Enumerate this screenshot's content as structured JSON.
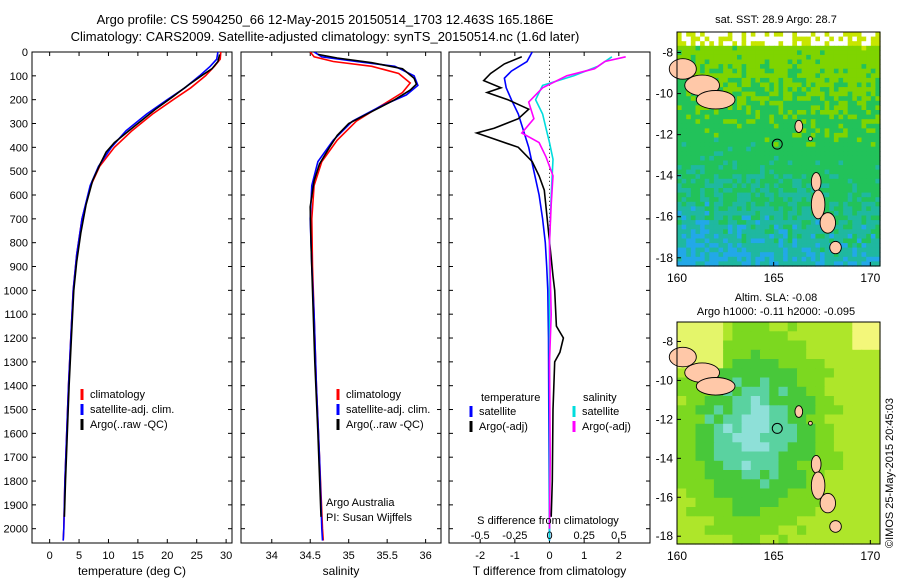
{
  "title": {
    "line1": "Argo profile: CS 5904250_66 12-May-2015 20150514_1703 12.463S 165.186E",
    "line2": "Climatology: CARS2009. Satellite-adjusted climatology: synTS_20150514.nc (1.6d later)"
  },
  "colors": {
    "climatology": "#ff0000",
    "satellite": "#0000ff",
    "argo": "#000000",
    "sat_salinity": "#00dddd",
    "argo_salinity": "#ff00ff"
  },
  "credit": "©IMOS 25-May-2015 20:45:03",
  "chart_data": [
    {
      "type": "line",
      "panel": "temperature",
      "xlabel": "temperature (deg C)",
      "x_ticks": [
        "0",
        "5",
        "10",
        "15",
        "20",
        "25",
        "30"
      ],
      "xlim": [
        -3,
        31
      ],
      "ylim": [
        0,
        2060
      ],
      "y_inverted": true,
      "y_ticks": [
        "0",
        "100",
        "200",
        "300",
        "400",
        "500",
        "600",
        "700",
        "800",
        "900",
        "1000",
        "1100",
        "1200",
        "1300",
        "1400",
        "1500",
        "1600",
        "1700",
        "1800",
        "1900",
        "2000"
      ],
      "legend": [
        "climatology",
        "satellite-adj. clim.",
        "Argo(..raw -QC)"
      ],
      "series": [
        {
          "name": "climatology",
          "color": "#ff0000",
          "points": [
            [
              29.1,
              0
            ],
            [
              29,
              30
            ],
            [
              28,
              60
            ],
            [
              26.5,
              100
            ],
            [
              24,
              150
            ],
            [
              21,
              200
            ],
            [
              17.5,
              260
            ],
            [
              14,
              330
            ],
            [
              11,
              400
            ],
            [
              8.5,
              480
            ],
            [
              7,
              560
            ],
            [
              5.5,
              700
            ],
            [
              4.6,
              850
            ],
            [
              4,
              1000
            ],
            [
              3.6,
              1200
            ],
            [
              3.2,
              1400
            ],
            [
              2.9,
              1600
            ],
            [
              2.6,
              1800
            ],
            [
              2.4,
              2000
            ],
            [
              2.3,
              2050
            ]
          ]
        },
        {
          "name": "satellite-adj. clim.",
          "color": "#0000ff",
          "points": [
            [
              28.6,
              0
            ],
            [
              28.4,
              30
            ],
            [
              27.3,
              60
            ],
            [
              25.5,
              100
            ],
            [
              23,
              150
            ],
            [
              20,
              200
            ],
            [
              16.5,
              260
            ],
            [
              13,
              330
            ],
            [
              10.5,
              400
            ],
            [
              8.3,
              480
            ],
            [
              6.9,
              560
            ],
            [
              5.5,
              700
            ],
            [
              4.6,
              850
            ],
            [
              4,
              1000
            ],
            [
              3.6,
              1200
            ],
            [
              3.2,
              1400
            ],
            [
              2.9,
              1600
            ],
            [
              2.6,
              1800
            ],
            [
              2.4,
              2000
            ],
            [
              2.3,
              2050
            ]
          ]
        },
        {
          "name": "Argo(..raw -QC)",
          "color": "#000000",
          "points": [
            [
              28.9,
              10
            ],
            [
              28.6,
              40
            ],
            [
              27.6,
              70
            ],
            [
              25.8,
              100
            ],
            [
              23.5,
              140
            ],
            [
              20.8,
              190
            ],
            [
              18,
              240
            ],
            [
              14.5,
              310
            ],
            [
              11,
              380
            ],
            [
              9.6,
              420
            ],
            [
              8.6,
              470
            ],
            [
              7.3,
              540
            ],
            [
              6.2,
              640
            ],
            [
              5.3,
              760
            ],
            [
              4.6,
              880
            ],
            [
              4.1,
              1000
            ],
            [
              3.7,
              1200
            ],
            [
              3.3,
              1400
            ],
            [
              3,
              1600
            ],
            [
              2.7,
              1800
            ],
            [
              2.5,
              1950
            ]
          ]
        }
      ]
    },
    {
      "type": "line",
      "panel": "salinity",
      "xlabel": "salinity",
      "x_ticks": [
        "34",
        "34.5",
        "35",
        "35.5",
        "36"
      ],
      "xlim": [
        33.6,
        36.2
      ],
      "ylim": [
        0,
        2060
      ],
      "y_inverted": true,
      "legend": [
        "climatology",
        "satellite-adj. clim.",
        "Argo(..raw -QC)"
      ],
      "annotations": [
        "Argo Australia",
        "PI: Susan Wijffels"
      ],
      "series": [
        {
          "name": "climatology",
          "color": "#ff0000",
          "points": [
            [
              34.5,
              0
            ],
            [
              34.55,
              20
            ],
            [
              34.8,
              40
            ],
            [
              35.3,
              60
            ],
            [
              35.65,
              90
            ],
            [
              35.8,
              130
            ],
            [
              35.7,
              170
            ],
            [
              35.45,
              220
            ],
            [
              35.1,
              290
            ],
            [
              34.85,
              370
            ],
            [
              34.65,
              460
            ],
            [
              34.55,
              560
            ],
            [
              34.52,
              700
            ],
            [
              34.53,
              900
            ],
            [
              34.55,
              1100
            ],
            [
              34.58,
              1400
            ],
            [
              34.62,
              1700
            ],
            [
              34.66,
              2000
            ],
            [
              34.67,
              2050
            ]
          ]
        },
        {
          "name": "satellite-adj. clim.",
          "color": "#0000ff",
          "points": [
            [
              34.55,
              0
            ],
            [
              34.65,
              20
            ],
            [
              35.1,
              40
            ],
            [
              35.6,
              60
            ],
            [
              35.85,
              100
            ],
            [
              35.9,
              140
            ],
            [
              35.75,
              180
            ],
            [
              35.4,
              230
            ],
            [
              35.05,
              290
            ],
            [
              34.8,
              370
            ],
            [
              34.6,
              460
            ],
            [
              34.52,
              560
            ],
            [
              34.5,
              700
            ],
            [
              34.52,
              900
            ],
            [
              34.55,
              1100
            ],
            [
              34.58,
              1400
            ],
            [
              34.62,
              1700
            ],
            [
              34.65,
              2000
            ],
            [
              34.66,
              2050
            ]
          ]
        },
        {
          "name": "Argo(..raw -QC)",
          "color": "#000000",
          "points": [
            [
              34.6,
              10
            ],
            [
              34.85,
              25
            ],
            [
              35.3,
              45
            ],
            [
              35.7,
              70
            ],
            [
              35.85,
              110
            ],
            [
              35.88,
              135
            ],
            [
              35.8,
              160
            ],
            [
              35.6,
              200
            ],
            [
              35.3,
              250
            ],
            [
              35.0,
              300
            ],
            [
              34.85,
              350
            ],
            [
              34.75,
              400
            ],
            [
              34.62,
              470
            ],
            [
              34.55,
              540
            ],
            [
              34.5,
              650
            ],
            [
              34.51,
              800
            ],
            [
              34.53,
              1000
            ],
            [
              34.56,
              1300
            ],
            [
              34.6,
              1600
            ],
            [
              34.64,
              1950
            ]
          ]
        }
      ]
    },
    {
      "type": "line",
      "panel": "difference",
      "xlabel": "T difference from climatology",
      "xlabel2": "S difference from climatology",
      "x_ticks": [
        "-2",
        "-1",
        "0",
        "1",
        "2"
      ],
      "x_ticks_top": [
        "-0.5",
        "-0.25",
        "0",
        "0.25",
        "0.5"
      ],
      "xlim": [
        -2.9,
        2.9
      ],
      "ylim": [
        0,
        2060
      ],
      "y_inverted": true,
      "legend_headers": [
        "temperature",
        "salinity"
      ],
      "legend_t": [
        "satellite",
        "Argo(-adj)"
      ],
      "legend_s": [
        "satellite",
        "Argo(-adj)"
      ],
      "series": [
        {
          "name": "satellite",
          "group": "temperature",
          "color": "#0000ff",
          "points": [
            [
              -0.5,
              0
            ],
            [
              -0.65,
              40
            ],
            [
              -1.1,
              80
            ],
            [
              -1.3,
              110
            ],
            [
              -1.25,
              150
            ],
            [
              -1.1,
              200
            ],
            [
              -0.9,
              260
            ],
            [
              -0.75,
              330
            ],
            [
              -0.6,
              400
            ],
            [
              -0.45,
              500
            ],
            [
              -0.3,
              600
            ],
            [
              -0.2,
              700
            ],
            [
              -0.12,
              800
            ],
            [
              -0.08,
              900
            ],
            [
              -0.05,
              1000
            ],
            [
              -0.03,
              1200
            ],
            [
              -0.02,
              1500
            ],
            [
              -0.01,
              1800
            ],
            [
              0,
              2050
            ]
          ]
        },
        {
          "name": "Argo(-adj)",
          "group": "temperature",
          "color": "#000000",
          "points": [
            [
              -0.8,
              20
            ],
            [
              -1.3,
              50
            ],
            [
              -1.7,
              90
            ],
            [
              -1.9,
              120
            ],
            [
              -1.4,
              150
            ],
            [
              -1.8,
              170
            ],
            [
              -1.2,
              200
            ],
            [
              -0.6,
              240
            ],
            [
              -0.9,
              280
            ],
            [
              -1.6,
              320
            ],
            [
              -2.1,
              340
            ],
            [
              -1.7,
              360
            ],
            [
              -0.9,
              400
            ],
            [
              -0.5,
              460
            ],
            [
              -0.3,
              520
            ],
            [
              -0.15,
              580
            ],
            [
              0.1,
              940
            ],
            [
              0.15,
              1000
            ],
            [
              0.2,
              1150
            ],
            [
              0.4,
              1200
            ],
            [
              0.3,
              1260
            ],
            [
              0.15,
              1300
            ],
            [
              0.1,
              1500
            ],
            [
              0.08,
              1800
            ],
            [
              0.05,
              1950
            ]
          ]
        },
        {
          "name": "satellite",
          "group": "salinity",
          "color": "#00dddd",
          "points": [
            [
              1.8,
              20
            ],
            [
              1.4,
              60
            ],
            [
              0.7,
              100
            ],
            [
              -0.2,
              140
            ],
            [
              -0.4,
              200
            ],
            [
              -0.2,
              260
            ],
            [
              -0.1,
              320
            ],
            [
              0,
              380
            ],
            [
              0.1,
              450
            ],
            [
              0.05,
              600
            ],
            [
              0,
              800
            ],
            [
              0,
              1200
            ],
            [
              0,
              1600
            ],
            [
              0,
              2050
            ]
          ]
        },
        {
          "name": "Argo(-adj)",
          "group": "salinity",
          "color": "#ff00ff",
          "points": [
            [
              2.2,
              20
            ],
            [
              1.6,
              40
            ],
            [
              1.3,
              70
            ],
            [
              0.5,
              100
            ],
            [
              -0.2,
              150
            ],
            [
              -0.6,
              210
            ],
            [
              -0.45,
              280
            ],
            [
              -0.8,
              340
            ],
            [
              -0.3,
              380
            ],
            [
              -0.1,
              440
            ],
            [
              0.1,
              520
            ],
            [
              0.05,
              640
            ],
            [
              0,
              800
            ],
            [
              0.05,
              1100
            ],
            [
              0,
              1300
            ],
            [
              0.02,
              1700
            ],
            [
              0,
              2000
            ]
          ]
        }
      ]
    },
    {
      "type": "heatmap",
      "panel": "sst-map",
      "title": "sat. SST: 28.9  Argo: 28.7",
      "x_ticks": [
        "160",
        "165",
        "170"
      ],
      "y_ticks": [
        "-8",
        "-10",
        "-12",
        "-14",
        "-16",
        "-18"
      ],
      "xlim": [
        160,
        170.5
      ],
      "ylim": [
        -18.4,
        -7
      ],
      "marker": {
        "lon": 165.186,
        "lat": -12.463
      }
    },
    {
      "type": "heatmap",
      "panel": "sla-map",
      "title": "Altim. SLA: -0.08",
      "subtitle": "Argo h1000: -0.11 h2000: -0.095",
      "x_ticks": [
        "160",
        "165",
        "170"
      ],
      "y_ticks": [
        "-8",
        "-10",
        "-12",
        "-14",
        "-16",
        "-18"
      ],
      "xlim": [
        160,
        170.5
      ],
      "ylim": [
        -18.4,
        -7
      ],
      "marker": {
        "lon": 165.186,
        "lat": -12.463
      }
    }
  ]
}
